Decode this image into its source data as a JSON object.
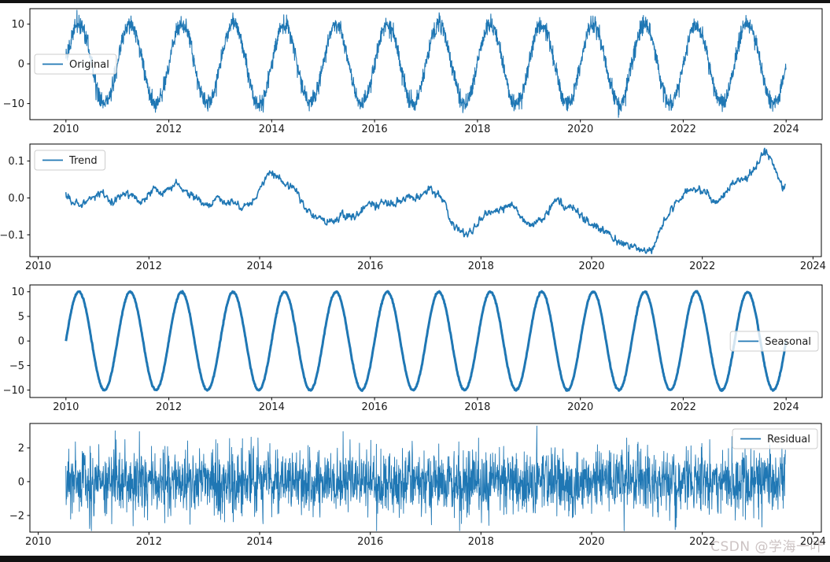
{
  "figure": {
    "background": "#ffffff",
    "line_color": "#1f77b4",
    "spine_color": "#000000",
    "watermark": {
      "text": "CSDN @学海一叶",
      "color": "#ccc3c3"
    }
  },
  "chart_data": [
    {
      "id": "original",
      "type": "line",
      "legend": {
        "label": "Original",
        "position": "center left"
      },
      "x": {
        "lim": [
          2009.3,
          2024.7
        ],
        "ticks": [
          2010,
          2012,
          2014,
          2016,
          2018,
          2020,
          2022,
          2024
        ],
        "tick_labels": [
          "2010",
          "2012",
          "2014",
          "2016",
          "2018",
          "2020",
          "2022",
          "2024"
        ]
      },
      "y": {
        "lim": [
          -14.05,
          13.9
        ],
        "ticks": [
          -10,
          0,
          10
        ],
        "tick_labels": [
          "−10",
          "0",
          "10"
        ]
      },
      "series": {
        "name": "Original",
        "model": "seasonal_sine_plus_noise",
        "t_start": 2010.0,
        "t_end": 2024.0,
        "amplitude": 10,
        "period_years": 1.0,
        "phase_zero_at": 2010.0,
        "noise_sd": 1.1,
        "points_per_year": 200,
        "approx_value_range": [
          -12.8,
          12.8
        ]
      }
    },
    {
      "id": "trend",
      "type": "line",
      "legend": {
        "label": "Trend",
        "position": "upper left"
      },
      "x": {
        "lim": [
          2009.85,
          2024.15
        ],
        "ticks": [
          2010,
          2012,
          2014,
          2016,
          2018,
          2020,
          2022,
          2024
        ],
        "tick_labels": [
          "2010",
          "2012",
          "2014",
          "2016",
          "2018",
          "2020",
          "2022",
          "2024"
        ]
      },
      "y": {
        "lim": [
          -0.159,
          0.146
        ],
        "ticks": [
          -0.1,
          0.0,
          0.1
        ],
        "tick_labels": [
          "−0.1",
          "0.0",
          "0.1"
        ]
      },
      "series": {
        "name": "Trend",
        "model": "keypoints_interpolated_plus_jitter",
        "t_start": 2010.5,
        "t_end": 2023.5,
        "jitter_sd": 0.0045,
        "points_per_year": 120,
        "keypoints": [
          [
            2010.5,
            0.013
          ],
          [
            2010.62,
            -0.012
          ],
          [
            2010.75,
            -0.02
          ],
          [
            2010.9,
            -0.005
          ],
          [
            2011.0,
            0.0
          ],
          [
            2011.15,
            0.01
          ],
          [
            2011.3,
            -0.01
          ],
          [
            2011.45,
            0.0
          ],
          [
            2011.6,
            0.013
          ],
          [
            2011.75,
            0.0
          ],
          [
            2011.9,
            -0.013
          ],
          [
            2012.0,
            0.01
          ],
          [
            2012.1,
            0.03
          ],
          [
            2012.2,
            0.012
          ],
          [
            2012.35,
            0.024
          ],
          [
            2012.5,
            0.042
          ],
          [
            2012.65,
            0.015
          ],
          [
            2012.8,
            0.005
          ],
          [
            2012.95,
            -0.013
          ],
          [
            2013.1,
            -0.02
          ],
          [
            2013.25,
            -0.006
          ],
          [
            2013.4,
            -0.016
          ],
          [
            2013.55,
            -0.01
          ],
          [
            2013.7,
            -0.026
          ],
          [
            2013.85,
            -0.015
          ],
          [
            2013.95,
            0.005
          ],
          [
            2014.1,
            0.05
          ],
          [
            2014.2,
            0.065
          ],
          [
            2014.35,
            0.055
          ],
          [
            2014.5,
            0.035
          ],
          [
            2014.65,
            0.02
          ],
          [
            2014.8,
            -0.02
          ],
          [
            2014.95,
            -0.045
          ],
          [
            2015.1,
            -0.055
          ],
          [
            2015.2,
            -0.072
          ],
          [
            2015.35,
            -0.06
          ],
          [
            2015.5,
            -0.045
          ],
          [
            2015.65,
            -0.052
          ],
          [
            2015.8,
            -0.042
          ],
          [
            2015.95,
            -0.018
          ],
          [
            2016.1,
            -0.02
          ],
          [
            2016.25,
            -0.012
          ],
          [
            2016.4,
            -0.02
          ],
          [
            2016.55,
            -0.008
          ],
          [
            2016.7,
            0.005
          ],
          [
            2016.85,
            -0.005
          ],
          [
            2017.0,
            0.015
          ],
          [
            2017.1,
            0.02
          ],
          [
            2017.25,
            0.01
          ],
          [
            2017.35,
            -0.01
          ],
          [
            2017.45,
            -0.065
          ],
          [
            2017.6,
            -0.085
          ],
          [
            2017.75,
            -0.105
          ],
          [
            2017.9,
            -0.08
          ],
          [
            2018.0,
            -0.055
          ],
          [
            2018.15,
            -0.04
          ],
          [
            2018.3,
            -0.035
          ],
          [
            2018.45,
            -0.022
          ],
          [
            2018.6,
            -0.02
          ],
          [
            2018.75,
            -0.055
          ],
          [
            2018.9,
            -0.072
          ],
          [
            2019.0,
            -0.066
          ],
          [
            2019.15,
            -0.055
          ],
          [
            2019.3,
            -0.015
          ],
          [
            2019.4,
            -0.002
          ],
          [
            2019.5,
            -0.03
          ],
          [
            2019.6,
            -0.018
          ],
          [
            2019.75,
            -0.042
          ],
          [
            2019.9,
            -0.06
          ],
          [
            2020.0,
            -0.072
          ],
          [
            2020.15,
            -0.085
          ],
          [
            2020.3,
            -0.095
          ],
          [
            2020.45,
            -0.115
          ],
          [
            2020.6,
            -0.125
          ],
          [
            2020.75,
            -0.132
          ],
          [
            2020.9,
            -0.142
          ],
          [
            2021.0,
            -0.148
          ],
          [
            2021.1,
            -0.138
          ],
          [
            2021.2,
            -0.1
          ],
          [
            2021.35,
            -0.052
          ],
          [
            2021.5,
            -0.015
          ],
          [
            2021.65,
            0.0
          ],
          [
            2021.75,
            0.024
          ],
          [
            2021.9,
            0.017
          ],
          [
            2022.0,
            0.031
          ],
          [
            2022.1,
            0.013
          ],
          [
            2022.25,
            -0.015
          ],
          [
            2022.4,
            0.01
          ],
          [
            2022.55,
            0.04
          ],
          [
            2022.7,
            0.052
          ],
          [
            2022.85,
            0.06
          ],
          [
            2023.0,
            0.088
          ],
          [
            2023.1,
            0.125
          ],
          [
            2023.15,
            0.128
          ],
          [
            2023.25,
            0.103
          ],
          [
            2023.35,
            0.067
          ],
          [
            2023.45,
            0.028
          ],
          [
            2023.5,
            0.034
          ]
        ]
      }
    },
    {
      "id": "seasonal",
      "type": "line",
      "legend": {
        "label": "Seasonal",
        "position": "center right"
      },
      "x": {
        "lim": [
          2009.3,
          2024.7
        ],
        "ticks": [
          2010,
          2012,
          2014,
          2016,
          2018,
          2020,
          2022,
          2024
        ],
        "tick_labels": [
          "2010",
          "2012",
          "2014",
          "2016",
          "2018",
          "2020",
          "2022",
          "2024"
        ]
      },
      "y": {
        "lim": [
          -11.5,
          11.4
        ],
        "ticks": [
          -10,
          -5,
          0,
          5,
          10
        ],
        "tick_labels": [
          "−10",
          "−5",
          "0",
          "5",
          "10"
        ]
      },
      "series": {
        "name": "Seasonal",
        "model": "pure_sine",
        "t_start": 2010.0,
        "t_end": 2024.0,
        "amplitude": 10,
        "period_years": 1.0,
        "phase_zero_at": 2010.0,
        "noise_sd": 0.08,
        "points_per_year": 120,
        "approx_value_range": [
          -10.2,
          10.2
        ]
      }
    },
    {
      "id": "residual",
      "type": "line",
      "legend": {
        "label": "Residual",
        "position": "upper right"
      },
      "x": {
        "lim": [
          2009.85,
          2024.15
        ],
        "ticks": [
          2010,
          2012,
          2014,
          2016,
          2018,
          2020,
          2022,
          2024
        ],
        "tick_labels": [
          "2010",
          "2012",
          "2014",
          "2016",
          "2018",
          "2020",
          "2022",
          "2024"
        ]
      },
      "y": {
        "lim": [
          -2.98,
          3.44
        ],
        "ticks": [
          -2,
          0,
          2
        ],
        "tick_labels": [
          "−2",
          "0",
          "2"
        ]
      },
      "series": {
        "name": "Residual",
        "model": "gaussian_noise",
        "t_start": 2010.5,
        "t_end": 2023.5,
        "noise_sd": 0.95,
        "clip": [
          -2.9,
          3.3
        ],
        "points_per_year": 210,
        "approx_value_range": [
          -2.9,
          3.3
        ]
      }
    }
  ]
}
